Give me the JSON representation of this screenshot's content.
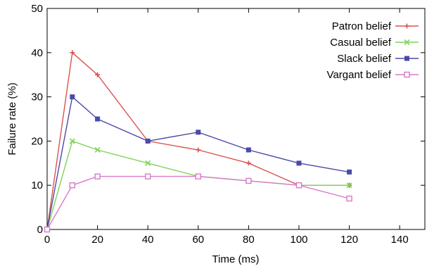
{
  "chart_data": {
    "type": "line",
    "xlabel": "Time (ms)",
    "ylabel": "Failure rate (%)",
    "xlim": [
      0,
      150
    ],
    "ylim": [
      0,
      50
    ],
    "xticks": [
      0,
      20,
      40,
      60,
      80,
      100,
      120,
      140
    ],
    "yticks": [
      0,
      10,
      20,
      30,
      40,
      50
    ],
    "grid": false,
    "legend_position": "top-right",
    "series": [
      {
        "name": "Patron belief",
        "color": "#d9534f",
        "marker": "plus",
        "x": [
          0,
          10,
          20,
          40,
          60,
          80,
          100,
          120
        ],
        "y": [
          0,
          40,
          35,
          20,
          18,
          15,
          10,
          10
        ]
      },
      {
        "name": "Casual belief",
        "color": "#7fd35a",
        "marker": "x",
        "x": [
          0,
          10,
          20,
          40,
          60,
          80,
          100,
          120
        ],
        "y": [
          0,
          20,
          18,
          15,
          12,
          11,
          10,
          10
        ]
      },
      {
        "name": "Slack belief",
        "color": "#4a4aa8",
        "marker": "filled-square",
        "x": [
          0,
          10,
          20,
          40,
          60,
          80,
          100,
          120
        ],
        "y": [
          0,
          30,
          25,
          20,
          22,
          18,
          15,
          13
        ]
      },
      {
        "name": "Vargant belief",
        "color": "#d978c9",
        "marker": "open-square",
        "x": [
          0,
          10,
          20,
          40,
          60,
          80,
          100,
          120
        ],
        "y": [
          0,
          10,
          12,
          12,
          12,
          11,
          10,
          7
        ]
      }
    ]
  }
}
